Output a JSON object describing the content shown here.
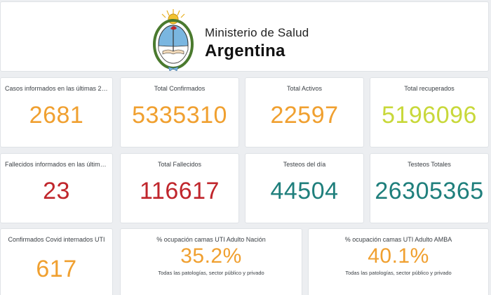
{
  "header": {
    "ministry": "Ministerio de Salud",
    "country": "Argentina"
  },
  "colors": {
    "orange": "#f0a030",
    "lime": "#c8d83a",
    "red": "#c0262c",
    "teal": "#1f7f7c"
  },
  "row1": [
    {
      "title": "Casos informados en las últimas 24...",
      "value": "2681"
    },
    {
      "title": "Total Confirmados",
      "value": "5335310"
    },
    {
      "title": "Total Activos",
      "value": "22597"
    },
    {
      "title": "Total recuperados",
      "value": "5196096"
    }
  ],
  "row2": [
    {
      "title": "Fallecidos informados en las última...",
      "value": "23"
    },
    {
      "title": "Total Fallecidos",
      "value": "116617"
    },
    {
      "title": "Testeos del día",
      "value": "44504"
    },
    {
      "title": "Testeos Totales",
      "value": "26305365"
    }
  ],
  "row3": [
    {
      "title": "Confirmados Covid internados UTI",
      "value": "617"
    },
    {
      "title": "% ocupación camas UTI Adulto Nación",
      "value": "35.2%",
      "subtitle": "Todas las patologías, sector público y privado"
    },
    {
      "title": "% ocupación camas UTI Adulto AMBA",
      "value": "40.1%",
      "subtitle": "Todas las patologías, sector público y privado"
    }
  ]
}
